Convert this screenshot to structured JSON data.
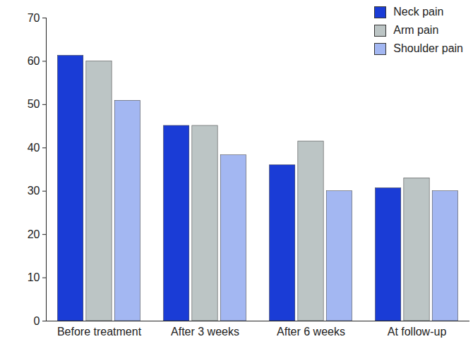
{
  "chart_data": {
    "type": "bar",
    "categories": [
      "Before treatment",
      "After 3 weeks",
      "After 6 weeks",
      "At follow-up"
    ],
    "series": [
      {
        "name": "Neck pain",
        "color": "#1a3cd6",
        "values": [
          61.3,
          45.1,
          36,
          30.7
        ]
      },
      {
        "name": "Arm pain",
        "color": "#bcc5c5",
        "values": [
          60,
          45.1,
          41.5,
          33
        ]
      },
      {
        "name": "Shoulder pain",
        "color": "#a3b7f2",
        "values": [
          50.9,
          38.3,
          30,
          30
        ]
      }
    ],
    "ylim": [
      0,
      70
    ],
    "yticks": [
      0,
      10,
      20,
      30,
      40,
      50,
      60,
      70
    ],
    "grid": false,
    "legend": "top-right"
  }
}
